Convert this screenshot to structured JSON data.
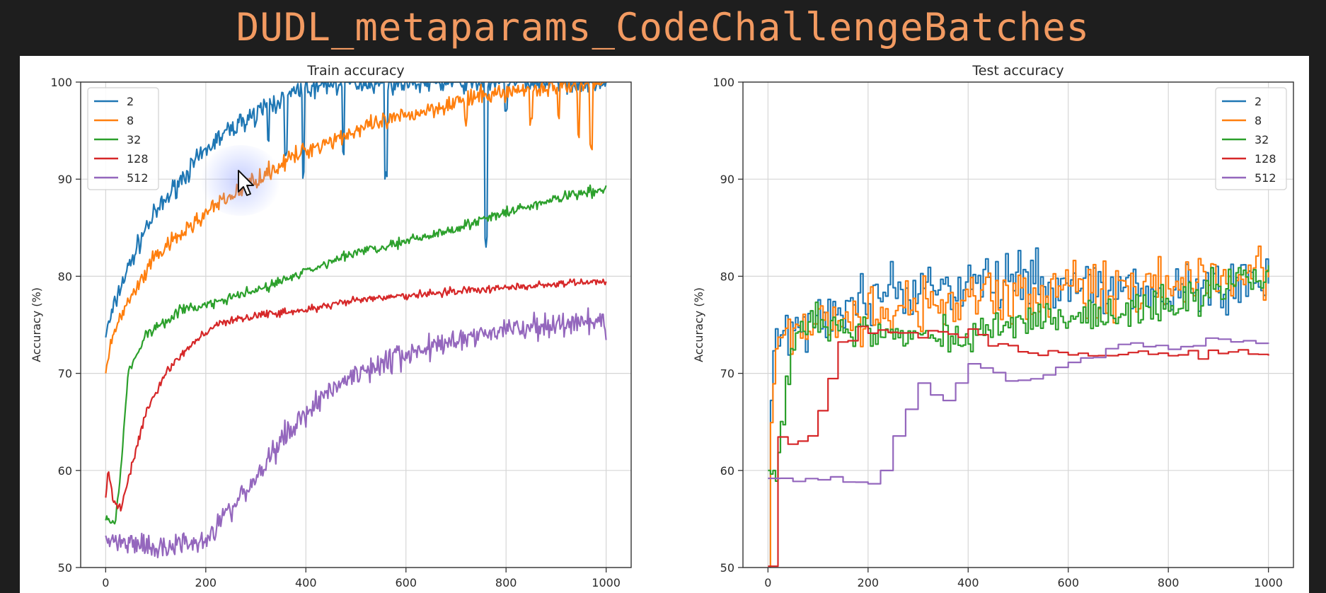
{
  "page": {
    "title": "DUDL_metaparams_CodeChallengeBatches"
  },
  "chart_data": [
    {
      "type": "line",
      "title": "Train accuracy",
      "xlabel": "",
      "ylabel": "Accuracy (%)",
      "xlim": [
        -50,
        1050
      ],
      "ylim": [
        50,
        100
      ],
      "x_ticks": [
        0,
        200,
        400,
        600,
        800,
        1000
      ],
      "y_ticks": [
        50,
        60,
        70,
        80,
        90,
        100
      ],
      "grid": true,
      "legend_placement": "top-left",
      "series": [
        {
          "name": "2",
          "color": "#1f77b4",
          "noise": 0.9,
          "dips": [
            [
              300,
              95
            ],
            [
              325,
              93
            ],
            [
              360,
              92
            ],
            [
              395,
              90
            ],
            [
              475,
              92
            ],
            [
              560,
              90
            ],
            [
              760,
              83
            ],
            [
              800,
              97
            ]
          ],
          "points": [
            [
              0,
              74
            ],
            [
              30,
              79
            ],
            [
              80,
              85
            ],
            [
              150,
              90
            ],
            [
              220,
              94
            ],
            [
              300,
              97
            ],
            [
              380,
              99
            ],
            [
              450,
              100
            ],
            [
              1000,
              100
            ]
          ]
        },
        {
          "name": "8",
          "color": "#ff7f0e",
          "noise": 0.8,
          "dips": [
            [
              720,
              95
            ],
            [
              850,
              95
            ],
            [
              905,
              96
            ],
            [
              945,
              94
            ],
            [
              970,
              93
            ]
          ],
          "points": [
            [
              0,
              70
            ],
            [
              20,
              75
            ],
            [
              100,
              82
            ],
            [
              200,
              86.5
            ],
            [
              300,
              90
            ],
            [
              400,
              93
            ],
            [
              500,
              95
            ],
            [
              600,
              96.5
            ],
            [
              700,
              98
            ],
            [
              800,
              99
            ],
            [
              900,
              99.5
            ],
            [
              1000,
              100
            ]
          ]
        },
        {
          "name": "32",
          "color": "#2ca02c",
          "noise": 0.45,
          "dips": [],
          "points": [
            [
              0,
              55
            ],
            [
              20,
              55
            ],
            [
              30,
              60
            ],
            [
              45,
              70
            ],
            [
              80,
              74
            ],
            [
              150,
              76.5
            ],
            [
              200,
              77
            ],
            [
              300,
              78.5
            ],
            [
              400,
              80.5
            ],
            [
              500,
              82.5
            ],
            [
              600,
              83.5
            ],
            [
              700,
              85
            ],
            [
              800,
              86.5
            ],
            [
              900,
              88
            ],
            [
              1000,
              89
            ]
          ]
        },
        {
          "name": "128",
          "color": "#d62728",
          "noise": 0.35,
          "dips": [],
          "points": [
            [
              0,
              57
            ],
            [
              5,
              60
            ],
            [
              15,
              57
            ],
            [
              30,
              56
            ],
            [
              50,
              60
            ],
            [
              80,
              66
            ],
            [
              120,
              70
            ],
            [
              170,
              73
            ],
            [
              220,
              75
            ],
            [
              300,
              76
            ],
            [
              400,
              76.5
            ],
            [
              500,
              77.5
            ],
            [
              600,
              78
            ],
            [
              700,
              78.5
            ],
            [
              800,
              78.8
            ],
            [
              900,
              79.2
            ],
            [
              1000,
              79.5
            ]
          ]
        },
        {
          "name": "512",
          "color": "#9467bd",
          "noise": 1.1,
          "dips": [],
          "points": [
            [
              0,
              53
            ],
            [
              100,
              52
            ],
            [
              200,
              53
            ],
            [
              250,
              56
            ],
            [
              300,
              59
            ],
            [
              350,
              63
            ],
            [
              400,
              66
            ],
            [
              450,
              68.5
            ],
            [
              500,
              70
            ],
            [
              600,
              72
            ],
            [
              700,
              73.5
            ],
            [
              800,
              74.5
            ],
            [
              900,
              75
            ],
            [
              1000,
              75
            ]
          ]
        }
      ]
    },
    {
      "type": "line",
      "title": "Test accuracy",
      "xlabel": "",
      "ylabel": "Accuracy (%)",
      "xlim": [
        -50,
        1050
      ],
      "ylim": [
        50,
        100
      ],
      "x_ticks": [
        0,
        200,
        400,
        600,
        800,
        1000
      ],
      "y_ticks": [
        50,
        60,
        70,
        80,
        90,
        100
      ],
      "grid": true,
      "legend_placement": "top-right",
      "series": [
        {
          "name": "2",
          "color": "#1f77b4",
          "noise": 2.5,
          "step": 5,
          "dips": [],
          "points": [
            [
              0,
              50
            ],
            [
              6,
              70
            ],
            [
              15,
              74
            ],
            [
              100,
              75
            ],
            [
              200,
              78
            ],
            [
              300,
              79
            ],
            [
              400,
              79
            ],
            [
              500,
              79.5
            ],
            [
              560,
              80
            ],
            [
              600,
              79
            ]
          ]
        },
        {
          "name": "8",
          "color": "#ff7f0e",
          "noise": 2.6,
          "step": 5,
          "dips": [],
          "points": [
            [
              0,
              50
            ],
            [
              6,
              71
            ],
            [
              20,
              74
            ],
            [
              200,
              76.5
            ],
            [
              400,
              77.5
            ],
            [
              600,
              78.5
            ],
            [
              800,
              79
            ],
            [
              1000,
              80
            ]
          ]
        },
        {
          "name": "32",
          "color": "#2ca02c",
          "noise": 1.6,
          "step": 5,
          "dips": [],
          "points": [
            [
              0,
              60
            ],
            [
              15,
              59
            ],
            [
              30,
              67
            ],
            [
              50,
              74
            ],
            [
              100,
              75
            ],
            [
              200,
              74
            ],
            [
              300,
              74
            ],
            [
              400,
              74
            ],
            [
              500,
              75
            ],
            [
              600,
              76
            ],
            [
              700,
              76
            ],
            [
              800,
              77
            ],
            [
              900,
              79
            ],
            [
              1000,
              80
            ]
          ]
        },
        {
          "name": "128",
          "color": "#d62728",
          "noise": 0.5,
          "step": 20,
          "dips": [],
          "points": [
            [
              0,
              50
            ],
            [
              5,
              67
            ],
            [
              20,
              64
            ],
            [
              50,
              62.5
            ],
            [
              80,
              64
            ],
            [
              110,
              68
            ],
            [
              140,
              73
            ],
            [
              180,
              74.5
            ],
            [
              300,
              74
            ],
            [
              400,
              74
            ],
            [
              450,
              73
            ],
            [
              550,
              72
            ],
            [
              700,
              72
            ],
            [
              800,
              72
            ],
            [
              950,
              72
            ],
            [
              1000,
              72
            ]
          ]
        },
        {
          "name": "512",
          "color": "#9467bd",
          "noise": 0.3,
          "step": 25,
          "dips": [],
          "points": [
            [
              0,
              59
            ],
            [
              200,
              59
            ],
            [
              230,
              60
            ],
            [
              260,
              65
            ],
            [
              300,
              69
            ],
            [
              350,
              67
            ],
            [
              400,
              71
            ],
            [
              450,
              70
            ],
            [
              500,
              69
            ],
            [
              550,
              70
            ],
            [
              600,
              71
            ],
            [
              700,
              73
            ],
            [
              800,
              72.5
            ],
            [
              900,
              73.5
            ],
            [
              1000,
              73
            ]
          ]
        }
      ]
    }
  ]
}
